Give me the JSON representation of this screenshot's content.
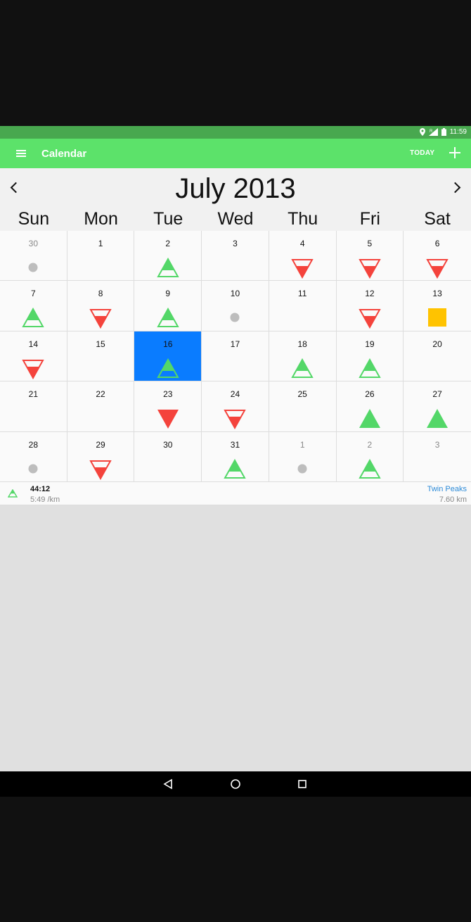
{
  "status_bar": {
    "time": "11:59",
    "icons": [
      "location-icon",
      "signal-icon",
      "battery-icon"
    ]
  },
  "app_bar": {
    "title": "Calendar",
    "today_label": "TODAY",
    "menu_icon": "hamburger-menu-icon",
    "add_icon": "plus-icon"
  },
  "calendar": {
    "month_title": "July 2013",
    "weekdays": [
      "Sun",
      "Mon",
      "Tue",
      "Wed",
      "Thu",
      "Fri",
      "Sat"
    ],
    "selected_day": "16",
    "days": [
      {
        "day": "30",
        "other": true,
        "mark": "dot"
      },
      {
        "day": "1",
        "other": false,
        "mark": null
      },
      {
        "day": "2",
        "other": false,
        "mark": "green-up-partial"
      },
      {
        "day": "3",
        "other": false,
        "mark": null
      },
      {
        "day": "4",
        "other": false,
        "mark": "red-down-partial"
      },
      {
        "day": "5",
        "other": false,
        "mark": "red-down-partial"
      },
      {
        "day": "6",
        "other": false,
        "mark": "red-down-partial"
      },
      {
        "day": "7",
        "other": false,
        "mark": "green-up-partial"
      },
      {
        "day": "8",
        "other": false,
        "mark": "red-down-partial"
      },
      {
        "day": "9",
        "other": false,
        "mark": "green-up-partial"
      },
      {
        "day": "10",
        "other": false,
        "mark": "dot"
      },
      {
        "day": "11",
        "other": false,
        "mark": null
      },
      {
        "day": "12",
        "other": false,
        "mark": "red-down-partial"
      },
      {
        "day": "13",
        "other": false,
        "mark": "yellow-square"
      },
      {
        "day": "14",
        "other": false,
        "mark": "red-down-partial"
      },
      {
        "day": "15",
        "other": false,
        "mark": null
      },
      {
        "day": "16",
        "other": false,
        "mark": "green-up-partial",
        "selected": true
      },
      {
        "day": "17",
        "other": false,
        "mark": null
      },
      {
        "day": "18",
        "other": false,
        "mark": "green-up-partial"
      },
      {
        "day": "19",
        "other": false,
        "mark": "green-up-partial"
      },
      {
        "day": "20",
        "other": false,
        "mark": null
      },
      {
        "day": "21",
        "other": false,
        "mark": null
      },
      {
        "day": "22",
        "other": false,
        "mark": null
      },
      {
        "day": "23",
        "other": false,
        "mark": "red-down-full"
      },
      {
        "day": "24",
        "other": false,
        "mark": "red-down-partial"
      },
      {
        "day": "25",
        "other": false,
        "mark": null
      },
      {
        "day": "26",
        "other": false,
        "mark": "green-up-full"
      },
      {
        "day": "27",
        "other": false,
        "mark": "green-up-full"
      },
      {
        "day": "28",
        "other": false,
        "mark": "dot"
      },
      {
        "day": "29",
        "other": false,
        "mark": "red-down-partial"
      },
      {
        "day": "30",
        "other": false,
        "mark": null
      },
      {
        "day": "31",
        "other": false,
        "mark": "green-up-partial"
      },
      {
        "day": "1",
        "other": true,
        "mark": "dot"
      },
      {
        "day": "2",
        "other": true,
        "mark": "green-up-partial"
      },
      {
        "day": "3",
        "other": true,
        "mark": null
      }
    ]
  },
  "selected_run": {
    "time": "44:12",
    "pace": "5:49 /km",
    "location": "Twin Peaks",
    "distance": "7.60 km"
  },
  "colors": {
    "green": "#53d768",
    "red": "#f4433c",
    "yellow": "#ffc300",
    "gray": "#bdbdbd",
    "selected": "#0a7cff",
    "link": "#2d8bd8"
  },
  "system_nav": {
    "back_icon": "back-triangle-icon",
    "home_icon": "home-circle-icon",
    "recents_icon": "recents-square-icon"
  }
}
